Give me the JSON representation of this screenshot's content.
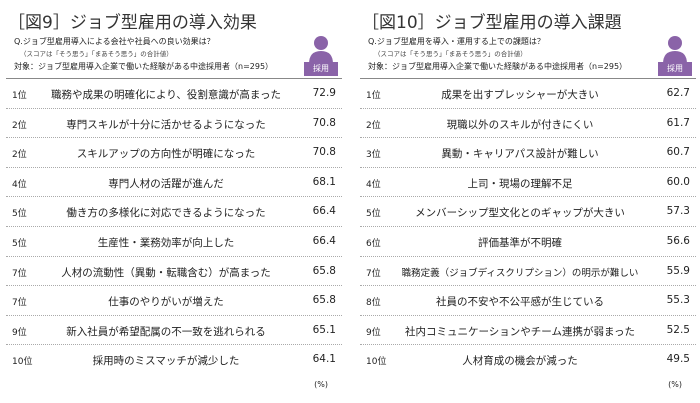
{
  "panels": [
    {
      "title": "［図9］ジョブ型雇用の導入効果",
      "question": "Q.ジョブ型雇用導入による会社や社員への良い効果は？",
      "note": "（スコアは「そう思う」「まあそう思う」の合計値）",
      "target": "対象：ジョブ型雇用導入企業で働いた経験がある中途採用者（n=295）",
      "badge": "採用",
      "unit": "(%)",
      "rows": [
        [
          "1位",
          "職務や成果の明確化により、役割意識が高まった",
          "72.9"
        ],
        [
          "2位",
          "専門スキルが十分に活かせるようになった",
          "70.8"
        ],
        [
          "2位",
          "スキルアップの方向性が明確になった",
          "70.8"
        ],
        [
          "4位",
          "専門人材の活躍が進んだ",
          "68.1"
        ],
        [
          "5位",
          "働き方の多様化に対応できるようになった",
          "66.4"
        ],
        [
          "5位",
          "生産性・業務効率が向上した",
          "66.4"
        ],
        [
          "7位",
          "人材の流動性（異動・転職含む）が高まった",
          "65.8"
        ],
        [
          "7位",
          "仕事のやりがいが増えた",
          "65.8"
        ],
        [
          "9位",
          "新入社員が希望配属の不一致を逃れられる",
          "65.1"
        ],
        [
          "10位",
          "採用時のミスマッチが減少した",
          "64.1"
        ]
      ]
    },
    {
      "title": "［図10］ジョブ型雇用の導入課題",
      "question": "Q.ジョブ型雇用を導入・運用する上での課題は？",
      "note": "（スコアは「そう思う」「まあそう思う」の合計値）",
      "target": "対象：ジョブ型雇用導入企業で働いた経験がある中途採用者（n=295）",
      "badge": "採用",
      "unit": "(%)",
      "rows": [
        [
          "1位",
          "成果を出すプレッシャーが大きい",
          "62.7"
        ],
        [
          "2位",
          "現職以外のスキルが付きにくい",
          "61.7"
        ],
        [
          "3位",
          "異動・キャリアパス設計が難しい",
          "60.7"
        ],
        [
          "4位",
          "上司・現場の理解不足",
          "60.0"
        ],
        [
          "5位",
          "メンバーシップ型文化とのギャップが大きい",
          "57.3"
        ],
        [
          "6位",
          "評価基準が不明確",
          "56.6"
        ],
        [
          "7位",
          "職務定義（ジョブディスクリプション）の明示が難しい",
          "55.9"
        ],
        [
          "8位",
          "社員の不安や不公平感が生じている",
          "55.3"
        ],
        [
          "9位",
          "社内コミュニケーションやチーム連携が弱まった",
          "52.5"
        ],
        [
          "10位",
          "人材育成の機会が減った",
          "49.5"
        ]
      ]
    }
  ]
}
